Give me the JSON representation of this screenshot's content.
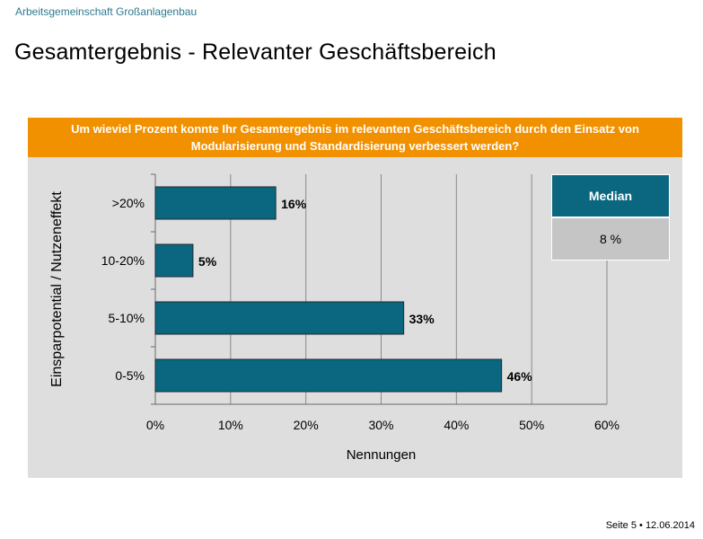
{
  "header": {
    "organization": "Arbeitsgemeinschaft Großanlagenbau",
    "title": "Gesamtergebnis - Relevanter Geschäftsbereich"
  },
  "question": "Um wieviel Prozent konnte Ihr Gesamtergebnis im relevanten Geschäftsbereich durch den Einsatz von Modularisierung und Standardisierung verbessert werden?",
  "median": {
    "label": "Median",
    "value": "8 %"
  },
  "footer": {
    "page": "Seite 5",
    "separator": "•",
    "date": "12.06.2014"
  },
  "colors": {
    "bar": "#0b6780",
    "question_bg": "#f29100",
    "panel_bg": "#dedede",
    "median_head": "#0b6780",
    "median_value": "#c5c5c5"
  },
  "chart_data": {
    "type": "bar",
    "orientation": "horizontal",
    "categories": [
      ">20%",
      "10-20%",
      "5-10%",
      "0-5%"
    ],
    "values": [
      16,
      5,
      33,
      46
    ],
    "data_labels": [
      "16%",
      "5%",
      "33%",
      "46%"
    ],
    "xlabel": "Nennungen",
    "ylabel": "Einsparpotential / Nutzeneffekt",
    "xlim": [
      0,
      60
    ],
    "xticks": [
      0,
      10,
      20,
      30,
      40,
      50,
      60
    ],
    "xtick_labels": [
      "0%",
      "10%",
      "20%",
      "30%",
      "40%",
      "50%",
      "60%"
    ],
    "grid": true
  }
}
